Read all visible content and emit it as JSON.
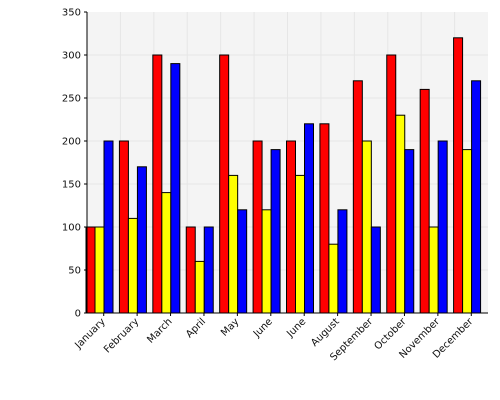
{
  "chart_data": {
    "type": "bar",
    "categories": [
      "January",
      "February",
      "March",
      "April",
      "May",
      "June",
      "June",
      "August",
      "September",
      "October",
      "November",
      "December"
    ],
    "series": [
      {
        "color": "#ff0000",
        "values": [
          100,
          200,
          300,
          100,
          300,
          200,
          200,
          220,
          270,
          300,
          260,
          320
        ]
      },
      {
        "color": "#ffff00",
        "values": [
          100,
          110,
          140,
          60,
          160,
          120,
          160,
          80,
          200,
          230,
          100,
          190
        ]
      },
      {
        "color": "#0000ff",
        "values": [
          200,
          170,
          290,
          100,
          120,
          190,
          220,
          120,
          100,
          190,
          200,
          270
        ]
      }
    ],
    "title": "",
    "xlabel": "",
    "ylabel": "",
    "ylim": [
      0,
      350
    ],
    "yticks": [
      0,
      50,
      100,
      150,
      200,
      250,
      300,
      350
    ],
    "grid": true,
    "legend": "none",
    "plot_background": "#f4f4f4",
    "grid_color": "#e6e6e6"
  }
}
